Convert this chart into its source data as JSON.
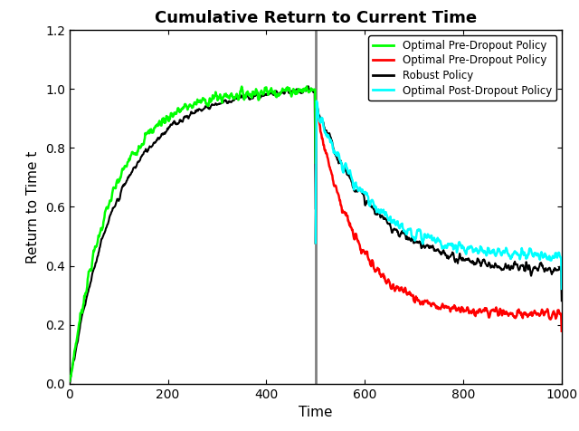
{
  "title": "Cumulative Return to Current Time",
  "xlabel": "Time",
  "ylabel": "Return to Time t",
  "xlim": [
    0,
    1000
  ],
  "ylim": [
    0,
    1.2
  ],
  "yticks": [
    0,
    0.2,
    0.4,
    0.6,
    0.8,
    1.0,
    1.2
  ],
  "xticks": [
    0,
    200,
    400,
    600,
    800,
    1000
  ],
  "dropout_time": 500,
  "colors": {
    "green": "#00FF00",
    "red": "#FF0000",
    "black": "#000000",
    "cyan": "#00FFFF",
    "vline": "#808080"
  },
  "legend_labels": [
    "Optimal Pre-Dropout Policy",
    "Optimal Pre-Dropout Policy",
    "Robust Policy",
    "Optimal Post-Dropout Policy"
  ],
  "legend_colors": [
    "#00FF00",
    "#FF0000",
    "#000000",
    "#00FFFF"
  ],
  "title_fontsize": 13,
  "label_fontsize": 11,
  "tick_fontsize": 10,
  "green_noise": 0.018,
  "black_noise": 0.012,
  "post_noise": 0.015,
  "green_tau": 85,
  "black_tau": 100,
  "black_post_floor": 0.375,
  "black_post_tau": 120,
  "red_post_floor": 0.235,
  "red_post_tau": 80,
  "cyan_post_floor": 0.425,
  "cyan_post_tau": 110
}
